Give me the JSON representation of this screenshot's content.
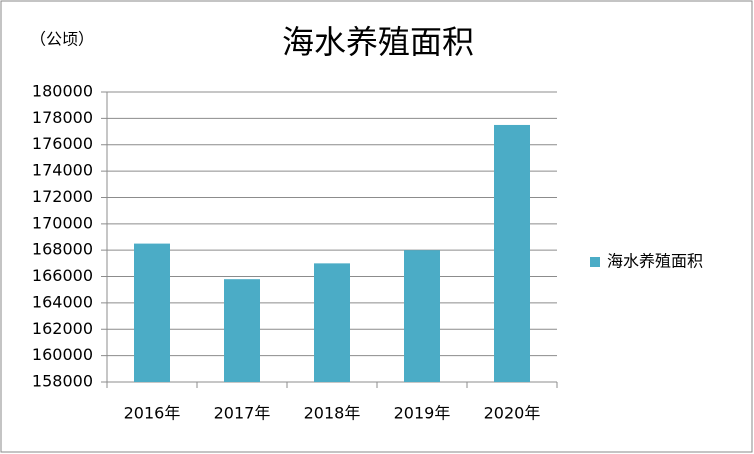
{
  "chart_data": {
    "type": "bar",
    "title": "海水养殖面积",
    "y_label": "（公顷）",
    "categories": [
      "2016年",
      "2017年",
      "2018年",
      "2019年",
      "2020年"
    ],
    "series": [
      {
        "name": "海水养殖面积",
        "color": "#4bacc6",
        "values": [
          168500,
          165800,
          167000,
          168000,
          177500
        ]
      }
    ],
    "ylim": [
      158000,
      180000
    ],
    "yticks": [
      158000,
      160000,
      162000,
      164000,
      166000,
      168000,
      170000,
      172000,
      174000,
      176000,
      178000,
      180000
    ],
    "grid": true,
    "legend": "right"
  }
}
